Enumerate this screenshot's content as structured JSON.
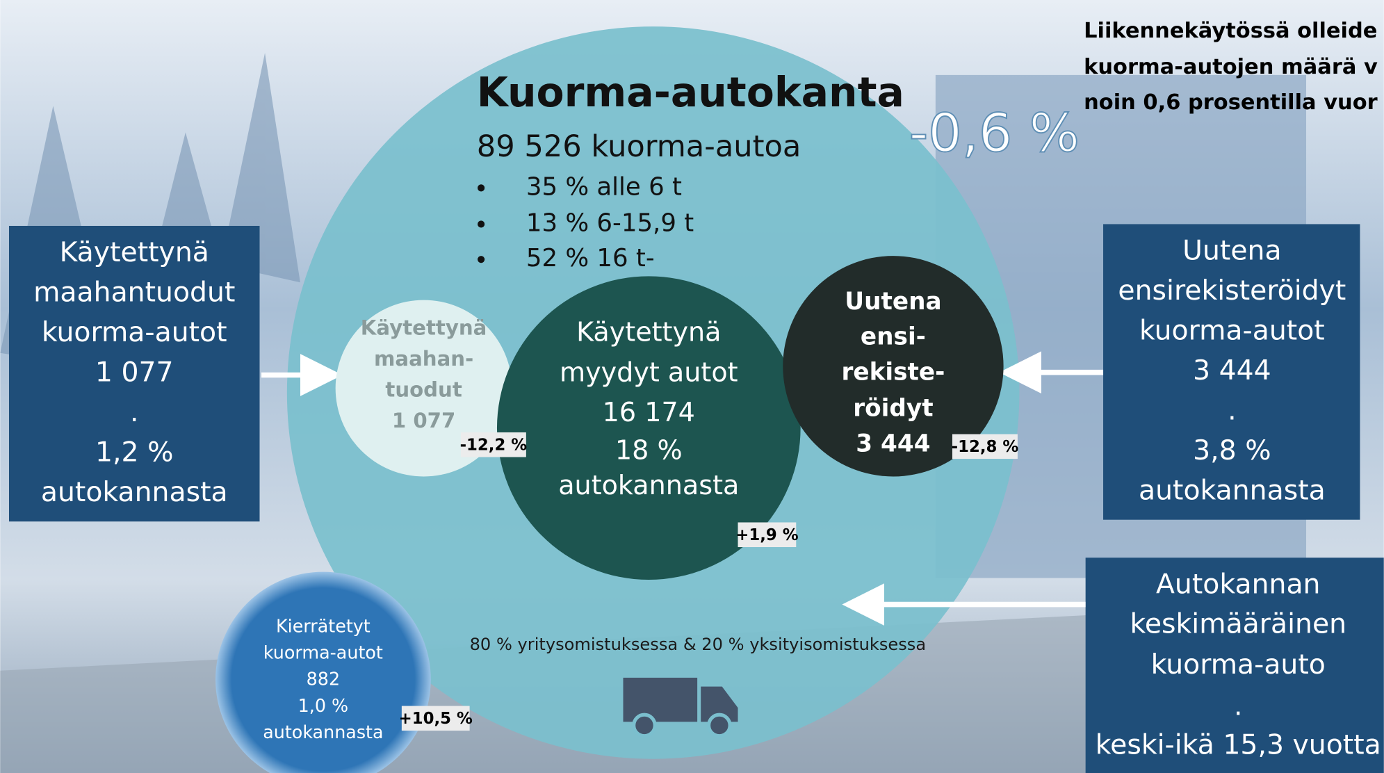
{
  "title": "Kuorma-autokanta",
  "total": "89 526 kuorma-autoa",
  "bullets": [
    "35 % alle 6 t",
    "13 % 6-15,9 t",
    "52 % 16 t-"
  ],
  "change": "-0,6 %",
  "note": [
    "Liikennekäytössä olleide",
    "kuorma-autojen määrä v",
    "noin 0,6 prosentilla vuor"
  ],
  "ownership": "80 % yritysomistuksessa & 20 % yksityisomistuksessa",
  "left_box": [
    "Käytettynä",
    "maahantuodut",
    "kuorma-autot",
    "1 077",
    ".",
    "1,2 %",
    "autokannasta"
  ],
  "right_box": [
    "Uutena",
    "ensirekisteröidyt",
    "kuorma-autot",
    "3 444",
    ".",
    "3,8 %",
    "autokannasta"
  ],
  "bottom_box": [
    "Autokannan",
    "keskimääräinen",
    "kuorma-auto",
    ".",
    "keski-ikä 15,3 vuotta"
  ],
  "circles": {
    "imported": {
      "lines": [
        "Käytettynä",
        "maahan-",
        "tuodut",
        "1 077"
      ],
      "badge": "-12,2 %"
    },
    "used_sold": {
      "lines": [
        "Käytettynä",
        "myydyt autot",
        "16 174",
        "18 %",
        "autokannasta"
      ],
      "badge": "+1,9 %"
    },
    "new_registered": {
      "lines": [
        "Uutena",
        "ensi-",
        "rekiste-",
        "röidyt",
        "3 444"
      ],
      "badge": "-12,8 %"
    },
    "recycled": {
      "lines": [
        "Kierrätetyt",
        "kuorma-autot",
        "882",
        "1,0 %",
        "autokannasta"
      ],
      "badge": "+10,5 %"
    }
  }
}
